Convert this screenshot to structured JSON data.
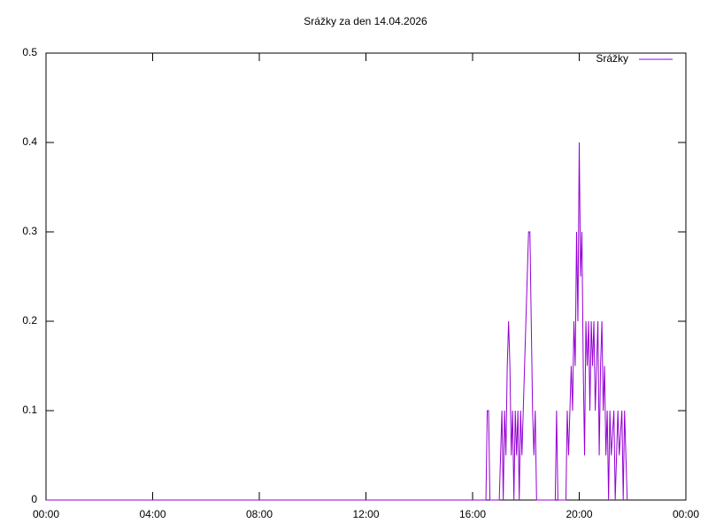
{
  "chart_data": {
    "type": "line",
    "title": "Srážky za den 14.04.2026",
    "x": [
      0,
      16.5,
      16.55,
      16.6,
      16.65,
      17.0,
      17.05,
      17.1,
      17.15,
      17.2,
      17.25,
      17.3,
      17.35,
      17.4,
      17.45,
      17.5,
      17.55,
      17.6,
      17.65,
      17.7,
      17.75,
      17.8,
      17.85,
      17.95,
      18.0,
      18.05,
      18.1,
      18.15,
      18.2,
      18.25,
      18.3,
      18.35,
      18.4,
      19.1,
      19.15,
      19.2,
      19.5,
      19.55,
      19.6,
      19.7,
      19.75,
      19.8,
      19.85,
      19.9,
      19.95,
      20.0,
      20.05,
      20.1,
      20.15,
      20.2,
      20.25,
      20.3,
      20.35,
      20.4,
      20.45,
      20.5,
      20.55,
      20.6,
      20.7,
      20.75,
      20.8,
      20.85,
      20.9,
      20.95,
      21.0,
      21.05,
      21.1,
      21.15,
      21.2,
      21.3,
      21.35,
      21.45,
      21.5,
      21.6,
      21.65,
      21.7,
      21.75,
      21.8
    ],
    "series": [
      {
        "name": "Srážky",
        "color": "#9400d3",
        "values": [
          0,
          0,
          0.1,
          0.1,
          0,
          0,
          0.05,
          0.1,
          0,
          0.1,
          0.05,
          0.15,
          0.2,
          0.15,
          0.05,
          0.1,
          0,
          0.1,
          0.05,
          0.1,
          0,
          0.1,
          0.05,
          0.15,
          0.2,
          0.25,
          0.3,
          0.3,
          0.2,
          0.1,
          0.05,
          0.1,
          0,
          0,
          0.1,
          0,
          0,
          0.1,
          0.05,
          0.15,
          0.1,
          0.2,
          0.15,
          0.3,
          0.2,
          0.4,
          0.25,
          0.3,
          0.15,
          0.05,
          0.2,
          0.15,
          0.2,
          0.1,
          0.2,
          0.15,
          0.2,
          0.1,
          0.2,
          0.05,
          0.15,
          0.2,
          0.1,
          0.15,
          0.05,
          0.1,
          0,
          0.1,
          0.05,
          0.1,
          0,
          0.1,
          0.05,
          0.1,
          0,
          0.1,
          0.05,
          0
        ]
      }
    ],
    "xlim": [
      0,
      24
    ],
    "xticks": [
      {
        "value": 0,
        "label": "00:00"
      },
      {
        "value": 4,
        "label": "04:00"
      },
      {
        "value": 8,
        "label": "08:00"
      },
      {
        "value": 12,
        "label": "12:00"
      },
      {
        "value": 16,
        "label": "16:00"
      },
      {
        "value": 20,
        "label": "20:00"
      },
      {
        "value": 24,
        "label": "00:00"
      }
    ],
    "ylim": [
      0,
      0.5
    ],
    "yticks": [
      0,
      0.1,
      0.2,
      0.3,
      0.4,
      0.5
    ],
    "legend": "top-right"
  }
}
